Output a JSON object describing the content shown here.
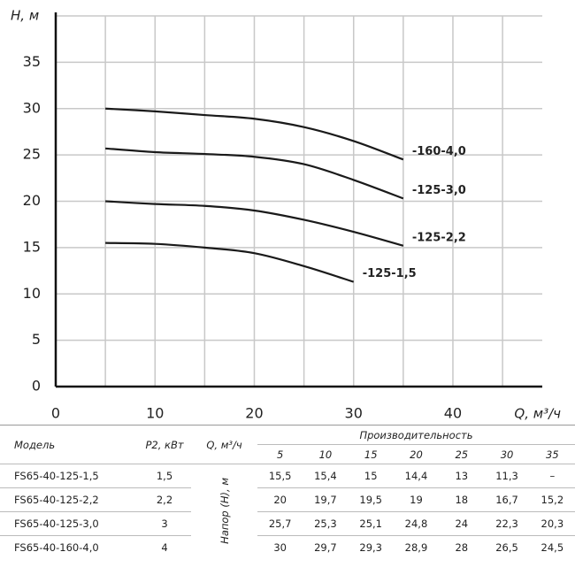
{
  "chart_data": {
    "type": "line",
    "x": [
      5,
      10,
      15,
      20,
      25,
      30,
      35
    ],
    "xlim": [
      0,
      49
    ],
    "ylim": [
      0,
      40
    ],
    "xticks": [
      0,
      10,
      20,
      30,
      40
    ],
    "yticks": [
      0,
      5,
      10,
      15,
      20,
      25,
      30,
      35
    ],
    "grid_x": [
      5,
      10,
      15,
      20,
      25,
      30,
      35,
      40,
      45
    ],
    "grid_y": [
      5,
      10,
      15,
      20,
      25,
      30,
      35,
      40
    ],
    "x_label": "Q, м³/ч",
    "y_label": "H, м",
    "series": [
      {
        "name": "-160-4,0",
        "color": "#1a1a1a",
        "values": [
          30,
          29.7,
          29.3,
          28.9,
          28,
          26.5,
          24.5
        ]
      },
      {
        "name": "-125-3,0",
        "color": "#1a1a1a",
        "values": [
          25.7,
          25.3,
          25.1,
          24.8,
          24,
          22.3,
          20.3
        ]
      },
      {
        "name": "-125-2,2",
        "color": "#1a1a1a",
        "values": [
          20,
          19.7,
          19.5,
          19,
          18,
          16.7,
          15.2
        ]
      },
      {
        "name": "-125-1,5",
        "color": "#1a1a1a",
        "values": [
          15.5,
          15.4,
          15,
          14.4,
          13,
          11.3,
          null
        ]
      }
    ]
  },
  "table": {
    "headers": {
      "model": "Модель",
      "power": "P2, кВт",
      "flow": "Q, м³/ч",
      "group": "Производительность",
      "columns": [
        "5",
        "10",
        "15",
        "20",
        "25",
        "30",
        "35"
      ]
    },
    "row_label": "Напор (Н), м",
    "rows": [
      [
        "FS65-40-125-1,5",
        "1,5",
        "15,5",
        "15,4",
        "15",
        "14,4",
        "13",
        "11,3",
        "–"
      ],
      [
        "FS65-40-125-2,2",
        "2,2",
        "20",
        "19,7",
        "19,5",
        "19",
        "18",
        "16,7",
        "15,2"
      ],
      [
        "FS65-40-125-3,0",
        "3",
        "25,7",
        "25,3",
        "25,1",
        "24,8",
        "24",
        "22,3",
        "20,3"
      ],
      [
        "FS65-40-160-4,0",
        "4",
        "30",
        "29,7",
        "29,3",
        "28,9",
        "28",
        "26,5",
        "24,5"
      ]
    ]
  }
}
